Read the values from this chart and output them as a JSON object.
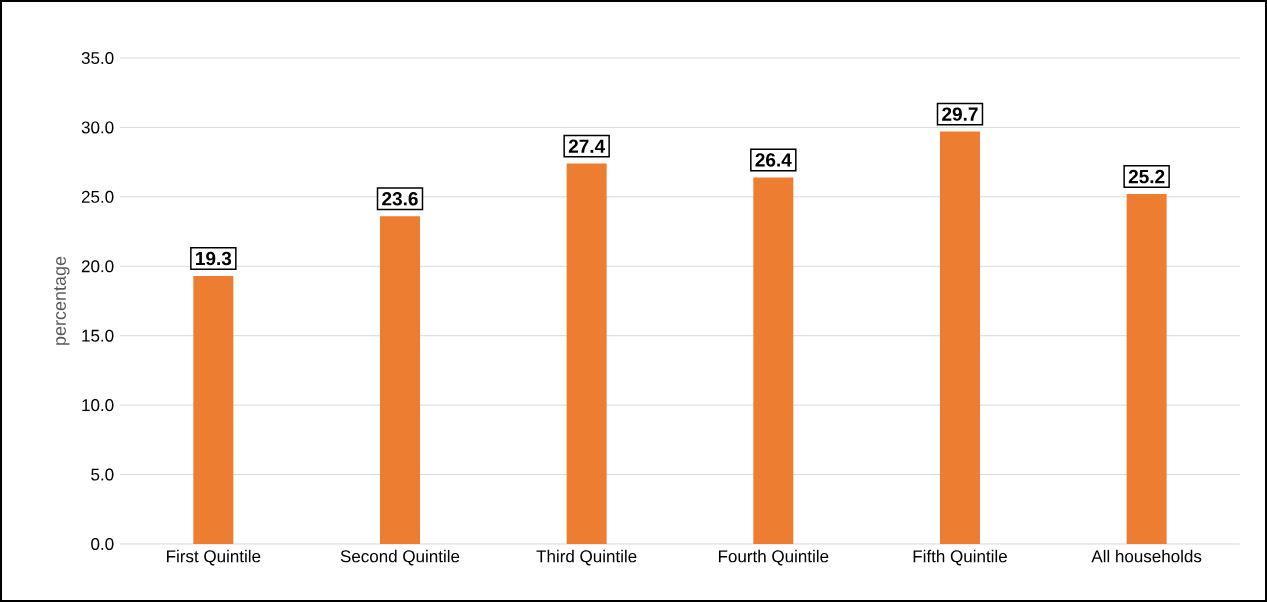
{
  "chart_data": {
    "type": "bar",
    "ylabel": "percentage",
    "categories": [
      "First Quintile",
      "Second Quintile",
      "Third Quintile",
      "Fourth Quintile",
      "Fifth Quintile",
      "All households"
    ],
    "values": [
      19.3,
      23.6,
      27.4,
      26.4,
      29.7,
      25.2
    ],
    "color": "#ed7d31",
    "data_labels": true,
    "grid": "y",
    "ylim": [
      0,
      35
    ],
    "yticks": [
      {
        "value": 0,
        "label": "0.0"
      },
      {
        "value": 5,
        "label": "5.0"
      },
      {
        "value": 10,
        "label": "10.0"
      },
      {
        "value": 15,
        "label": "15.0"
      },
      {
        "value": 20,
        "label": "20.0"
      },
      {
        "value": 25,
        "label": "25.0"
      },
      {
        "value": 30,
        "label": "30.0"
      },
      {
        "value": 35,
        "label": "35.0"
      }
    ]
  }
}
